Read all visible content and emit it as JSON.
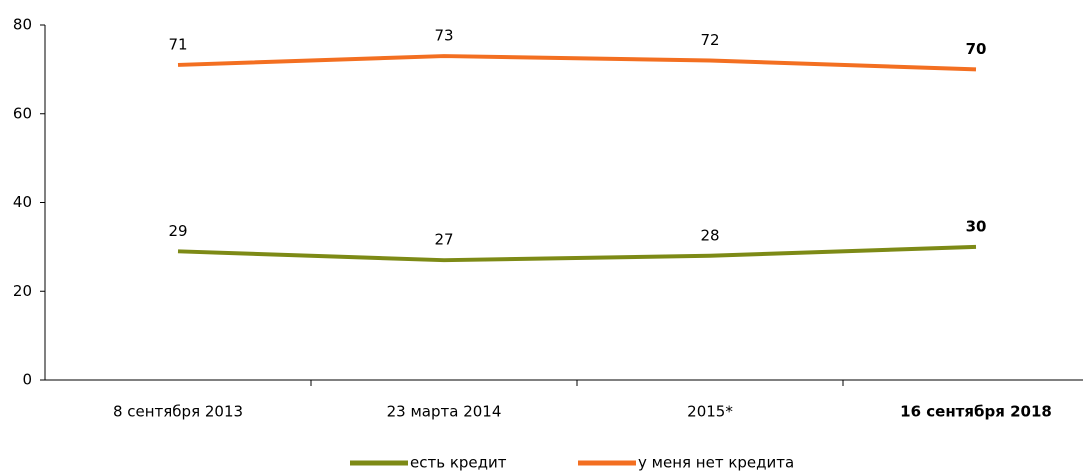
{
  "chart_data": {
    "type": "line",
    "categories": [
      "8 сентября 2013",
      "23 марта 2014",
      "2015*",
      "16 сентября 2018"
    ],
    "series": [
      {
        "name": "есть кредит",
        "color": "#7d8a16",
        "values": [
          29,
          27,
          28,
          30
        ]
      },
      {
        "name": "у меня нет кредита",
        "color": "#f36f21",
        "values": [
          71,
          73,
          72,
          70
        ]
      }
    ],
    "ylim": [
      0,
      80
    ],
    "yticks": [
      0,
      20,
      40,
      60,
      80
    ],
    "legend": "bottom"
  }
}
